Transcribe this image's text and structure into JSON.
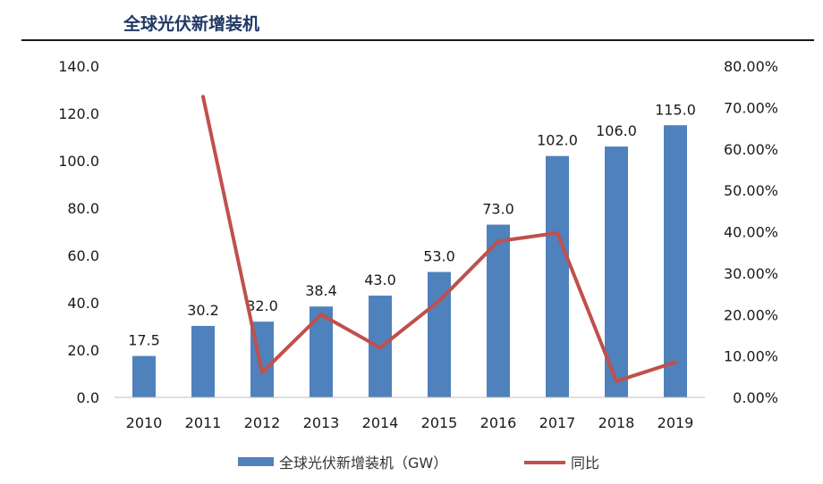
{
  "title": "全球光伏新增装机",
  "chart_data": {
    "type": "bar",
    "categories": [
      "2010",
      "2011",
      "2012",
      "2013",
      "2014",
      "2015",
      "2016",
      "2017",
      "2018",
      "2019"
    ],
    "series": [
      {
        "name": "全球光伏新增装机（GW）",
        "type": "bar",
        "axis": "left",
        "color": "#4f81bd",
        "values": [
          17.5,
          30.2,
          32.0,
          38.4,
          43.0,
          53.0,
          73.0,
          102.0,
          106.0,
          115.0
        ],
        "labels": [
          "17.5",
          "30.2",
          "32.0",
          "38.4",
          "43.0",
          "53.0",
          "73.0",
          "102.0",
          "106.0",
          "115.0"
        ]
      },
      {
        "name": "同比",
        "type": "line",
        "axis": "right",
        "color": "#c0504d",
        "values": [
          null,
          72.6,
          6.0,
          20.0,
          12.0,
          23.3,
          37.7,
          39.7,
          3.9,
          8.5
        ]
      }
    ],
    "y_left": {
      "min": 0,
      "max": 140,
      "ticks": [
        "0.0",
        "20.0",
        "40.0",
        "60.0",
        "80.0",
        "100.0",
        "120.0",
        "140.0"
      ]
    },
    "y_right": {
      "min": 0,
      "max": 80,
      "ticks": [
        "0.00%",
        "10.00%",
        "20.00%",
        "30.00%",
        "40.00%",
        "50.00%",
        "60.00%",
        "70.00%",
        "80.00%"
      ]
    },
    "legend_position": "bottom",
    "grid": false
  }
}
